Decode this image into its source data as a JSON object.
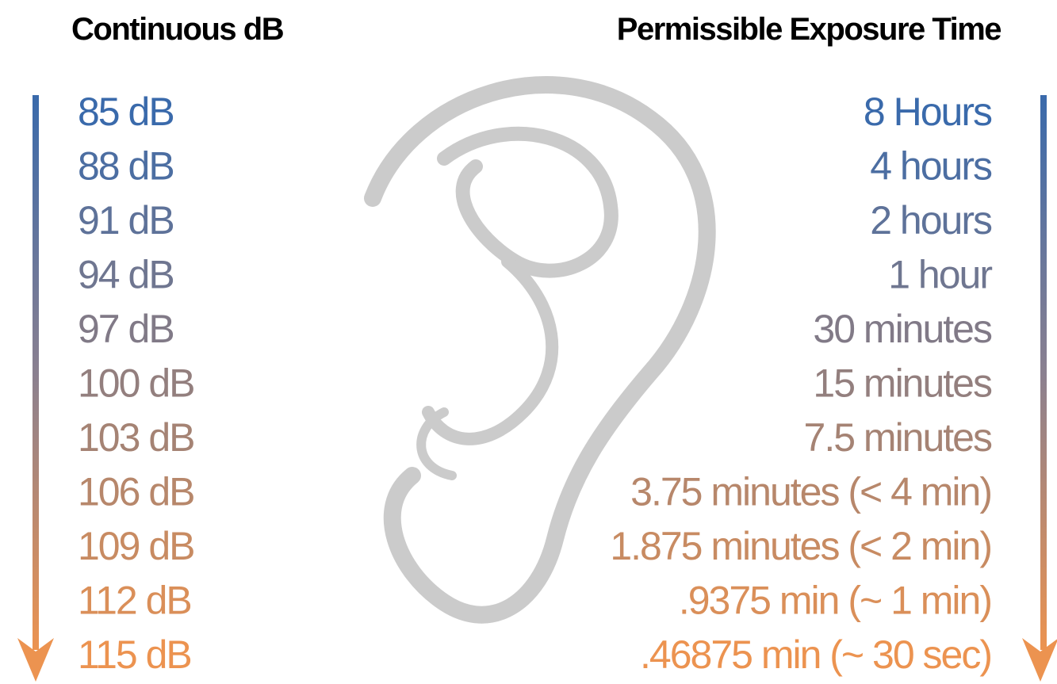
{
  "headers": {
    "left": "Continuous dB",
    "right": "Permissible Exposure Time"
  },
  "rows": [
    [
      "85 dB",
      "8 Hours"
    ],
    [
      "88 dB",
      "4 hours"
    ],
    [
      "91 dB",
      "2 hours"
    ],
    [
      "94 dB",
      "1 hour"
    ],
    [
      "97 dB",
      "30 minutes"
    ],
    [
      "100 dB",
      "15 minutes"
    ],
    [
      "103 dB",
      "7.5 minutes"
    ],
    [
      "106 dB",
      "3.75 minutes (< 4 min)"
    ],
    [
      "109 dB",
      "1.875 minutes (< 2 min)"
    ],
    [
      "112 dB",
      ".9375 min (~ 1 min)"
    ],
    [
      "115 dB",
      ".46875 min (~ 30 sec)"
    ]
  ]
}
